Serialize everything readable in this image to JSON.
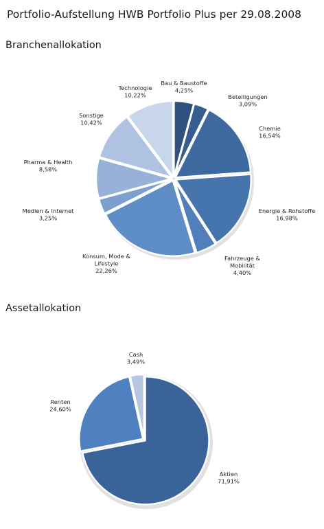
{
  "title": "Portfolio-Aufstellung HWB Portfolio Plus per 29.08.2008",
  "chart_data": [
    {
      "type": "pie",
      "title": "Branchenallokation",
      "unit": "%",
      "slices": [
        {
          "label": "Bau & Baustoffe",
          "value": 4.25,
          "display": "4,25%",
          "color": "#2f4f7e"
        },
        {
          "label": "Beteiligungen",
          "value": 3.09,
          "display": "3,09%",
          "color": "#375d90"
        },
        {
          "label": "Chemie",
          "value": 16.54,
          "display": "16,54%",
          "color": "#3e69a0"
        },
        {
          "label": "Energie & Rohstoffe",
          "value": 16.98,
          "display": "16,98%",
          "color": "#4674ad"
        },
        {
          "label": "Fahrzeuge & Mobilität",
          "value": 4.4,
          "display": "4,40%",
          "color": "#507fb9"
        },
        {
          "label": "Konsum, Mode & Lifestyle",
          "value": 22.26,
          "display": "22,26%",
          "color": "#5f8dc6"
        },
        {
          "label": "Medien & Internet",
          "value": 3.25,
          "display": "3,25%",
          "color": "#7d9fce"
        },
        {
          "label": "Pharma & Health",
          "value": 8.58,
          "display": "8,58%",
          "color": "#97b1d8"
        },
        {
          "label": "Sonstige",
          "value": 10.42,
          "display": "10,42%",
          "color": "#afc2e1"
        },
        {
          "label": "Technologie",
          "value": 10.22,
          "display": "10,22%",
          "color": "#c9d5ea"
        }
      ]
    },
    {
      "type": "pie",
      "title": "Assetallokation",
      "unit": "%",
      "slices": [
        {
          "label": "Aktien",
          "value": 71.91,
          "display": "71,91%",
          "color": "#3a6399"
        },
        {
          "label": "Renten",
          "value": 24.6,
          "display": "24,60%",
          "color": "#4f80c0"
        },
        {
          "label": "Cash",
          "value": 3.49,
          "display": "3,49%",
          "color": "#b6c6e0"
        }
      ]
    }
  ]
}
